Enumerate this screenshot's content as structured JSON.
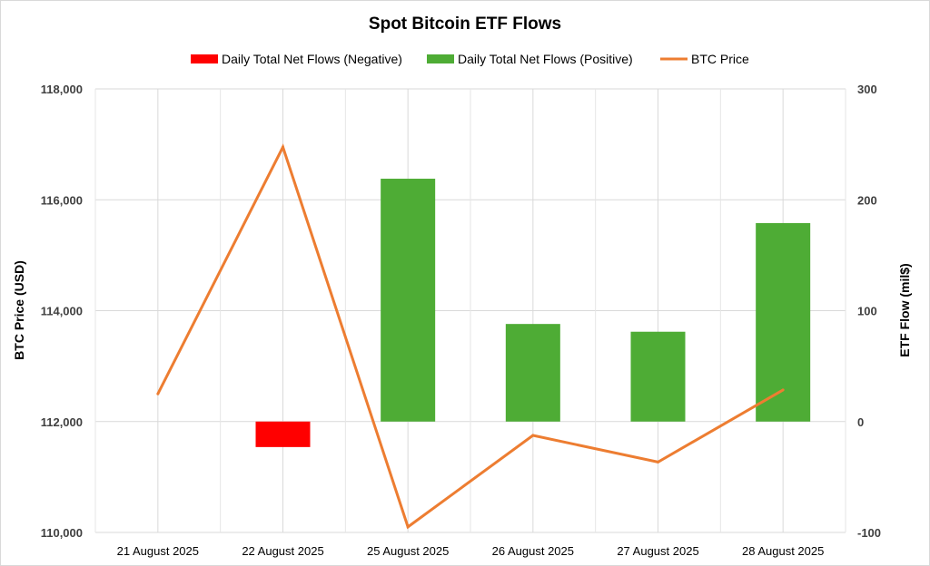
{
  "chart_data": {
    "type": "bar",
    "title": "Spot Bitcoin ETF Flows",
    "categories": [
      "21 August 2025",
      "22 August 2025",
      "25 August 2025",
      "26 August 2025",
      "27 August 2025",
      "28 August 2025"
    ],
    "series": [
      {
        "name": "Daily Total Net Flows (Negative)",
        "type": "bar",
        "axis": "right",
        "color": "#ff0000",
        "values": [
          null,
          -23,
          null,
          null,
          null,
          null
        ]
      },
      {
        "name": "Daily Total Net Flows (Positive)",
        "type": "bar",
        "axis": "right",
        "color": "#4eac35",
        "values": [
          null,
          null,
          219,
          88,
          81,
          179
        ]
      },
      {
        "name": "BTC Price",
        "type": "line",
        "axis": "left",
        "color": "#ed7d31",
        "values": [
          112500,
          116950,
          110100,
          111750,
          111270,
          112570
        ]
      }
    ],
    "ylabel": "BTC Price (USD)",
    "ylabel_right": "ETF Flow (mil$)",
    "ylim": [
      110000,
      118000
    ],
    "ylim_right": [
      -100,
      300
    ],
    "yticks": [
      "110,000",
      "112,000",
      "114,000",
      "116,000",
      "118,000"
    ],
    "yticks_right": [
      "-100",
      "0",
      "100",
      "200",
      "300"
    ],
    "grid": true,
    "legend_position": "top"
  }
}
